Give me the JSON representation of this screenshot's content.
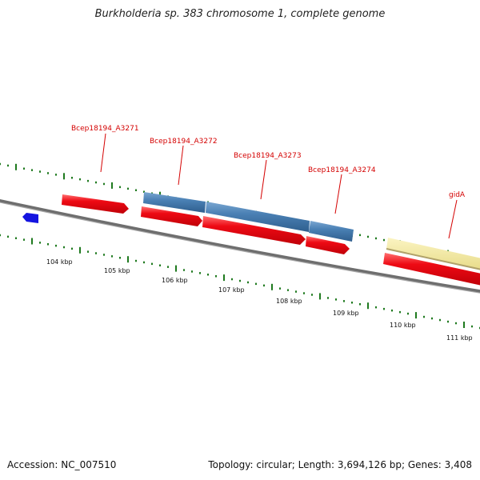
{
  "map": {
    "title": "Burkholderia sp. 383 chromosome 1, complete genome",
    "accession": "Accession: NC_007510",
    "stats": "Topology: circular; Length: 3,694,126 bp; Genes: 3,408",
    "colors": {
      "backbone": "#7a7a7a",
      "cds": "#e8000b",
      "cds_highlight": "#ff6a6a",
      "orthologous": "#4a80b4",
      "rna": "#f1e8a2",
      "blue_feature": "#1414e0",
      "ticks": "#1f7a1f",
      "label": "#d40000"
    },
    "tick_labels": [
      "104 kbp",
      "105 kbp",
      "106 kbp",
      "107 kbp",
      "108 kbp",
      "109 kbp",
      "110 kbp",
      "111 kbp"
    ],
    "gene_labels": [
      "Bcep18194_A3271",
      "Bcep18194_A3272",
      "Bcep18194_A3273",
      "Bcep18194_A3274",
      "gidA"
    ]
  }
}
